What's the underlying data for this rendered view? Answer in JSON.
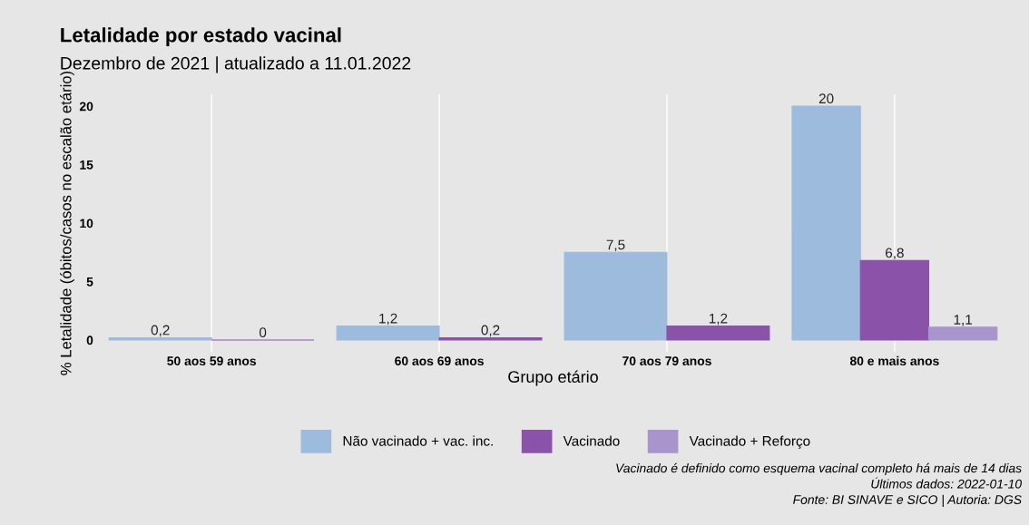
{
  "chart_data": {
    "type": "bar",
    "title": "Letalidade por estado vacinal",
    "subtitle": "Dezembro de 2021 | atualizado a 11.01.2022",
    "xlabel": "Grupo etário",
    "ylabel": "% Letalidade (óbitos/casos no escalão etário)",
    "categories": [
      "50 aos 59 anos",
      "60 aos 69 anos",
      "70 aos 79 anos",
      "80 e mais anos"
    ],
    "series": [
      {
        "name": "Não vacinado + vac. inc.",
        "color": "#9dbbdc",
        "values": [
          0.2,
          1.2,
          7.5,
          20
        ],
        "value_labels": [
          "0,2",
          "1,2",
          "7,5",
          "20"
        ]
      },
      {
        "name": "Vacinado",
        "color": "#8a52a8",
        "values": [
          0,
          0.2,
          1.2,
          6.8
        ],
        "value_labels": [
          "0",
          "0,2",
          "1,2",
          "6,8"
        ]
      },
      {
        "name": "Vacinado + Reforço",
        "color": "#a895cc",
        "values": [
          null,
          null,
          null,
          1.1
        ],
        "value_labels": [
          null,
          null,
          null,
          "1,1"
        ]
      }
    ],
    "ylim": [
      -1,
      21
    ],
    "yticks": [
      0,
      5,
      10,
      15,
      20
    ],
    "grid": "x",
    "legend": "bottom",
    "annotations": [
      "Vacinado é definido como esquema vacinal completo há mais de 14 dias",
      "Últimos dados: 2022-01-10",
      "Fonte: BI SINAVE e SICO | Autoria: DGS"
    ]
  }
}
